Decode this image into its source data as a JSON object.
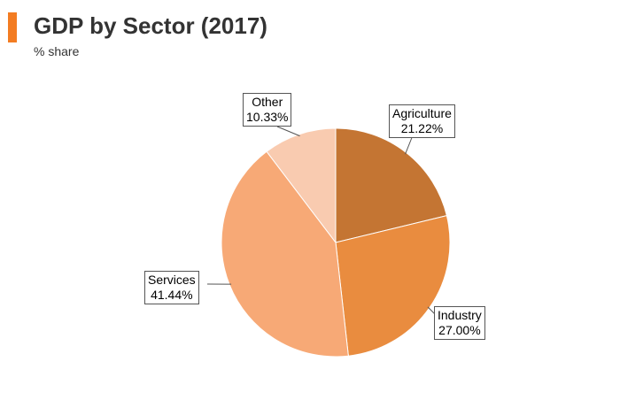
{
  "header": {
    "title": "GDP by Sector (2017)",
    "subtitle": "% share"
  },
  "colors": {
    "accent": "#f37c22"
  },
  "chart_data": {
    "type": "pie",
    "title": "GDP by Sector (2017)",
    "subtitle": "% share",
    "start_angle_deg": 0,
    "direction": "clockwise",
    "slices": [
      {
        "key": "agriculture",
        "label": "Agriculture",
        "value": 21.22,
        "value_label": "21.22%",
        "color": "#c47533"
      },
      {
        "key": "industry",
        "label": "Industry",
        "value": 27.0,
        "value_label": "27.00%",
        "color": "#e98c3f"
      },
      {
        "key": "services",
        "label": "Services",
        "value": 41.44,
        "value_label": "41.44%",
        "color": "#f7a976"
      },
      {
        "key": "other",
        "label": "Other",
        "value": 10.33,
        "value_label": "10.33%",
        "color": "#f9cbb0"
      }
    ]
  }
}
